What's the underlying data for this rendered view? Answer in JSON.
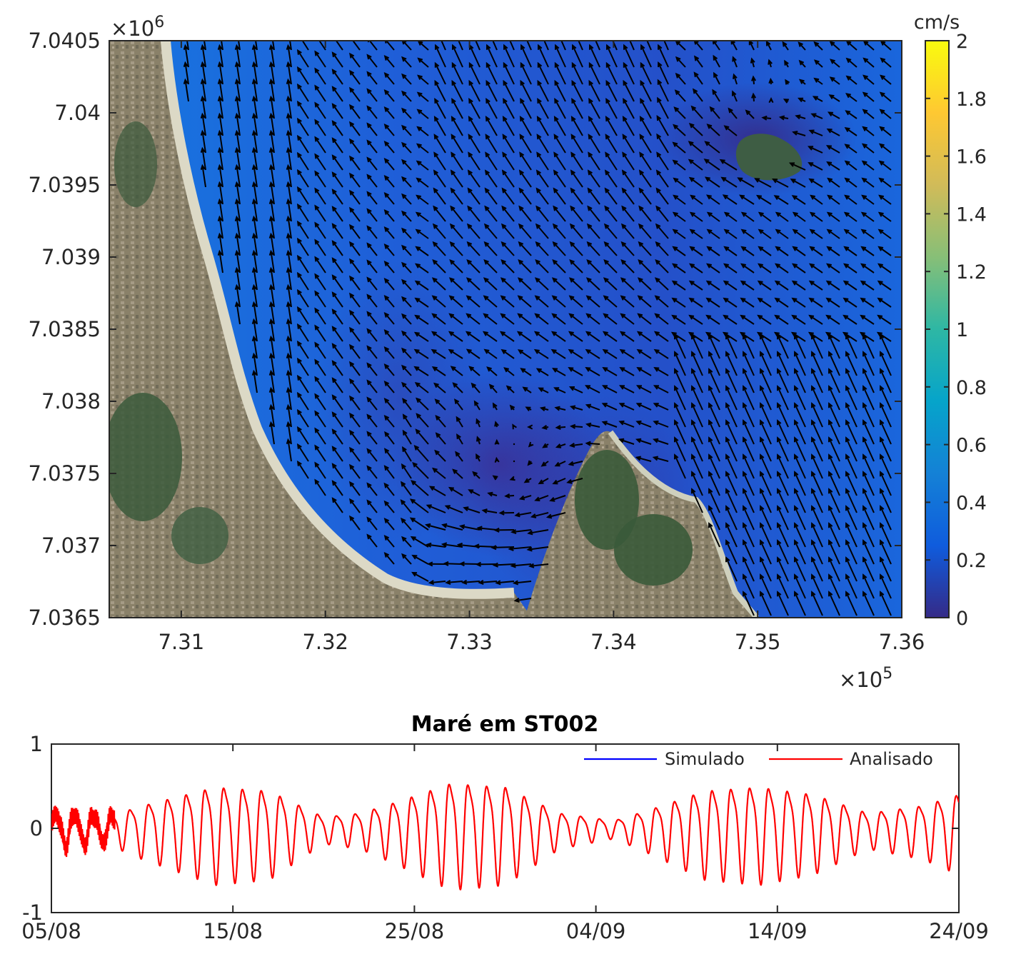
{
  "chart_data": [
    {
      "type": "heatmap",
      "subtype": "current-field-with-vectors-over-satellite-image",
      "title": "",
      "xlabel": "",
      "ylabel": "",
      "x_exponent_label": "×10",
      "x_exponent_power": "5",
      "y_exponent_label": "×10",
      "y_exponent_power": "6",
      "xlim": [
        7.305,
        7.36
      ],
      "ylim": [
        7.0365,
        7.0405
      ],
      "x_ticks": [
        "7.31",
        "7.32",
        "7.33",
        "7.34",
        "7.35",
        "7.36"
      ],
      "x_tick_values": [
        7.31,
        7.32,
        7.33,
        7.34,
        7.35,
        7.36
      ],
      "y_ticks": [
        "7.0405",
        "7.04",
        "7.0395",
        "7.039",
        "7.0385",
        "7.038",
        "7.0375",
        "7.037",
        "7.0365"
      ],
      "y_tick_values": [
        7.0405,
        7.04,
        7.0395,
        7.039,
        7.0385,
        7.038,
        7.0375,
        7.037,
        7.0365
      ],
      "colorbar": {
        "unit": "cm/s",
        "range": [
          0,
          2
        ],
        "ticks": [
          "0",
          "0.2",
          "0.4",
          "0.6",
          "0.8",
          "1",
          "1.2",
          "1.4",
          "1.6",
          "1.8",
          "2"
        ],
        "tick_values": [
          0,
          0.2,
          0.4,
          0.6,
          0.8,
          1,
          1.2,
          1.4,
          1.6,
          1.8,
          2
        ],
        "colormap": [
          "#352a87",
          "#0f5cdd",
          "#1481d6",
          "#06a4ca",
          "#2eb7a4",
          "#87bf77",
          "#d1bb59",
          "#fec832",
          "#f9fb0e"
        ]
      },
      "colors": {
        "water_low": "#2d2f9a",
        "water_mid": "#1c55d6",
        "water_high": "#1b73e0",
        "land": "#7d7a5e",
        "vegetation": "#3a5a3a",
        "beach": "#d8d6c4",
        "arrow": "#000000"
      }
    },
    {
      "type": "line",
      "title": "Maré em ST002",
      "xlabel": "",
      "ylabel": "",
      "ylim": [
        -1,
        1
      ],
      "y_ticks": [
        "1",
        "0",
        "-1"
      ],
      "y_tick_values": [
        1,
        0,
        -1
      ],
      "x_ticks": [
        "05/08",
        "15/08",
        "25/08",
        "04/09",
        "14/09",
        "24/09"
      ],
      "x_tick_days": [
        0,
        10,
        20,
        30,
        40,
        50
      ],
      "legend_position": "top-right",
      "series": [
        {
          "name": "Simulado",
          "color": "#0000ff",
          "visible_data": false
        },
        {
          "name": "Analisado",
          "color": "#ff0000",
          "visible_data": true
        }
      ],
      "tidal_envelope": {
        "description_values_amplitude": [
          [
            0,
            0.2
          ],
          [
            3,
            0.15
          ],
          [
            5,
            0.3
          ],
          [
            9,
            0.55
          ],
          [
            12,
            0.5
          ],
          [
            15,
            0.15
          ],
          [
            17,
            0.2
          ],
          [
            19,
            0.35
          ],
          [
            22,
            0.6
          ],
          [
            25,
            0.55
          ],
          [
            28,
            0.2
          ],
          [
            31,
            0.1
          ],
          [
            33,
            0.25
          ],
          [
            36,
            0.5
          ],
          [
            39,
            0.55
          ],
          [
            42,
            0.45
          ],
          [
            45,
            0.2
          ],
          [
            48,
            0.3
          ],
          [
            50,
            0.45
          ]
        ]
      }
    }
  ]
}
